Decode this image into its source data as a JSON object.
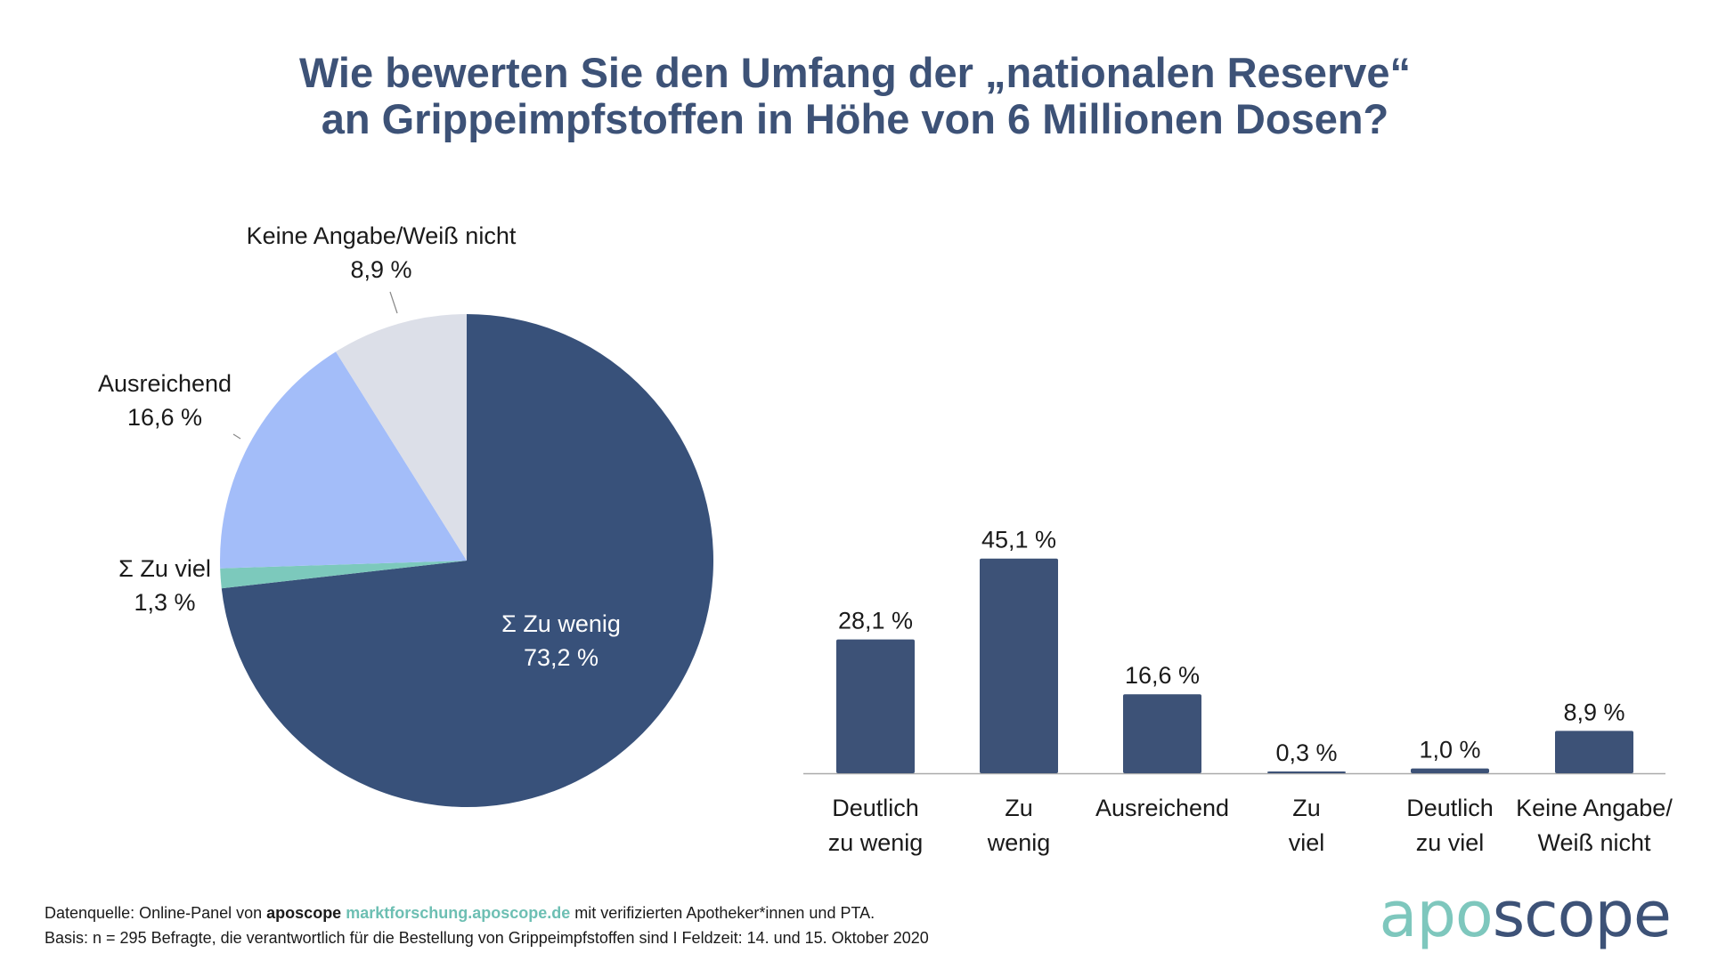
{
  "title_lines": [
    "Wie bewerten Sie den Umfang der „nationalen Reserve“",
    "an Grippeimpfstoffen in Höhe von 6 Millionen Dosen?"
  ],
  "colors": {
    "navy": "#38517a",
    "bar": "#3d5277",
    "light_blue": "#a3bdf9",
    "light_gray": "#dcdfe8",
    "teal": "#7cc9bc"
  },
  "chart_data": [
    {
      "type": "pie",
      "title": "",
      "slices": [
        {
          "label": "Σ Zu wenig",
          "value": 73.2,
          "value_label": "73,2 %",
          "color": "#38517a"
        },
        {
          "label": "Σ Zu viel",
          "value": 1.3,
          "value_label": "1,3 %",
          "color": "#7cc9bc"
        },
        {
          "label": "Ausreichend",
          "value": 16.6,
          "value_label": "16,6 %",
          "color": "#a3bdf9"
        },
        {
          "label": "Keine Angabe/Weiß nicht",
          "value": 8.9,
          "value_label": "8,9 %",
          "color": "#dcdfe8"
        }
      ],
      "start": "12 o'clock, clockwise"
    },
    {
      "type": "bar",
      "title": "",
      "categories": [
        [
          "Deutlich",
          "zu wenig"
        ],
        [
          "Zu",
          "wenig"
        ],
        [
          "Ausreichend"
        ],
        [
          "Zu",
          "viel"
        ],
        [
          "Deutlich",
          "zu viel"
        ],
        [
          "Keine Angabe/",
          "Weiß nicht"
        ]
      ],
      "values": [
        28.1,
        45.1,
        16.6,
        0.3,
        1.0,
        8.9
      ],
      "value_labels": [
        "28,1 %",
        "45,1 %",
        "16,6 %",
        "0,3 %",
        "1,0 %",
        "8,9 %"
      ],
      "xlabel": "",
      "ylabel": "",
      "ylim": [
        0,
        50
      ],
      "grid": false,
      "color": "#3d5277"
    }
  ],
  "footer": {
    "line1_a": "Datenquelle: Online-Panel von ",
    "line1_brand": "aposcope",
    "line1_link": "marktforschung.aposcope.de",
    "line1_b": " mit verifizierten Apotheker*innen und PTA.",
    "line2": "Basis: n = 295 Befragte, die verantwortlich für die Bestellung von Grippeimpfstoffen sind I Feldzeit: 14. und 15. Oktober 2020"
  },
  "logo": {
    "apo": "apo",
    "scope": "scope"
  }
}
